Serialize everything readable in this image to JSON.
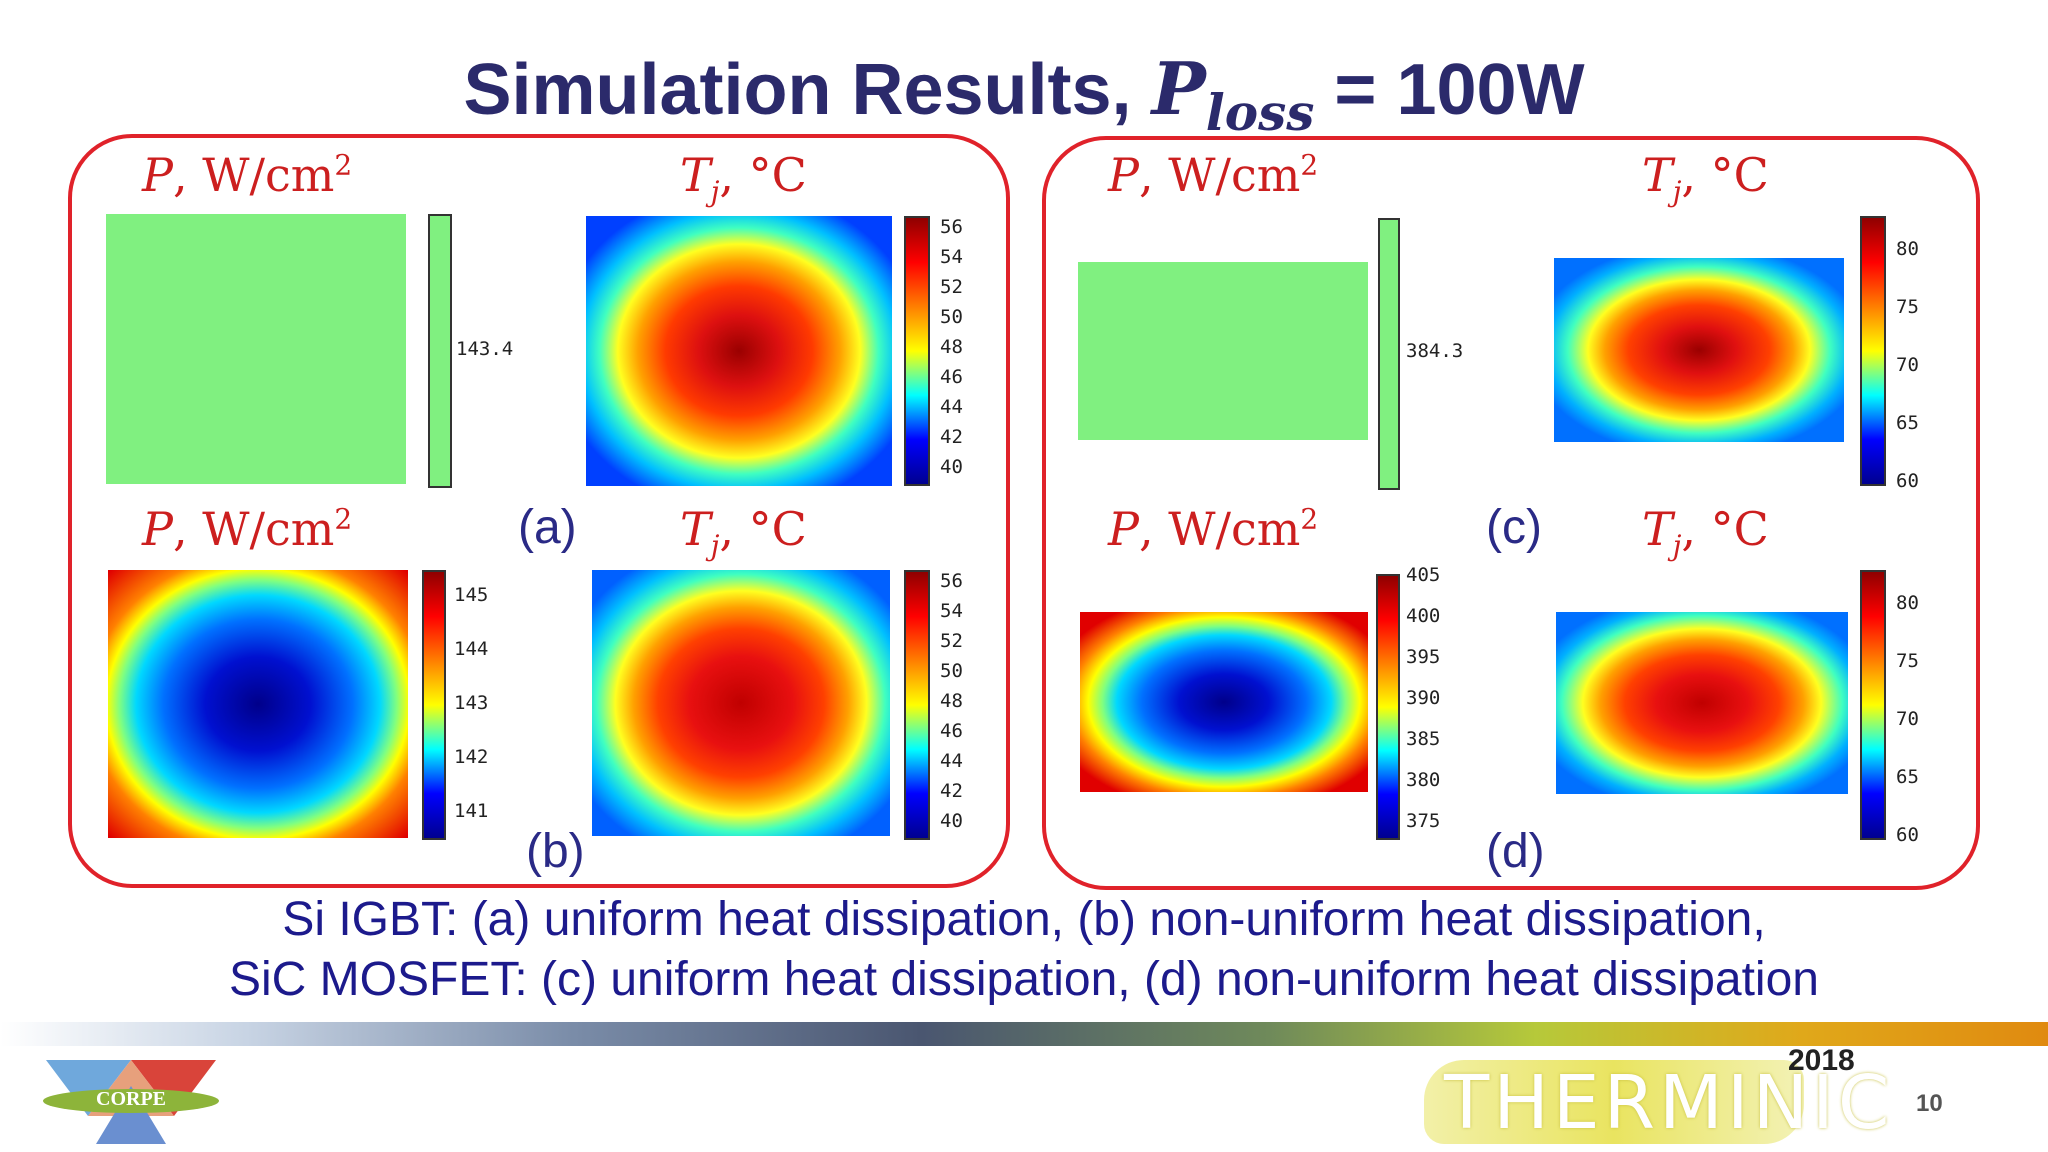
{
  "slide": {
    "title_main": "Simulation Results,",
    "title_var": "P",
    "title_sub": "loss",
    "title_eq": "= 100W",
    "caption_line1": "Si IGBT: (a) uniform heat dissipation, (b) non-uniform heat dissipation,",
    "caption_line2": "SiC MOSFET: (c) uniform heat dissipation, (d) non-uniform heat dissipation",
    "page_number": "10"
  },
  "labels": {
    "p_var": "P",
    "p_unit": ", W/cm",
    "p_exp": "2",
    "t_var": "T",
    "t_sub": "j",
    "t_unit": ", °C"
  },
  "panels": {
    "a": "(a)",
    "b": "(b)",
    "c": "(c)",
    "d": "(d)"
  },
  "colorbars": {
    "a_power": [
      "143.4"
    ],
    "a_temp": [
      "56",
      "54",
      "52",
      "50",
      "48",
      "46",
      "44",
      "42",
      "40"
    ],
    "b_power": [
      "145",
      "144",
      "143",
      "142",
      "141"
    ],
    "b_temp": [
      "56",
      "54",
      "52",
      "50",
      "48",
      "46",
      "44",
      "42",
      "40"
    ],
    "c_power": [
      "384.3"
    ],
    "c_temp": [
      "80",
      "75",
      "70",
      "65",
      "60"
    ],
    "d_power": [
      "405",
      "400",
      "395",
      "390",
      "385",
      "380",
      "375"
    ],
    "d_temp": [
      "80",
      "75",
      "70",
      "65",
      "60"
    ]
  },
  "footer": {
    "logo_left_text": "CORPE",
    "logo_right_text": "THERMINIC",
    "logo_right_year": "2018"
  },
  "colors": {
    "title": "#2b2a6b",
    "box_border": "#e0222a",
    "label_red": "#cc1f1f",
    "caption_blue": "#1c1a8c",
    "uniform_green": "#80f080"
  }
}
